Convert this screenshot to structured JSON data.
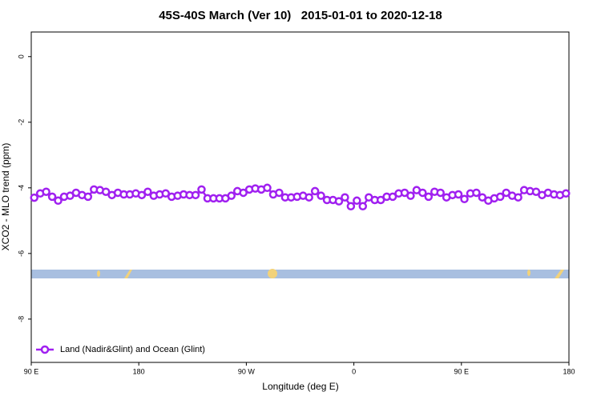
{
  "chart_data": {
    "type": "line",
    "title": "45S-40S March (Ver 10)   2015-01-01 to 2020-12-18",
    "x_label": "Longitude (deg E)",
    "y_label": "XCO2 - MLO trend (ppm)",
    "legend_position": "bottom-left",
    "xlim": [
      90,
      540
    ],
    "xticks": [
      {
        "value": 90,
        "label": "90 E"
      },
      180,
      {
        "value": 270,
        "label": "90 W"
      },
      {
        "value": 360,
        "label": "0"
      },
      {
        "value": 450,
        "label": "90 E"
      },
      {
        "value": 540,
        "label": "180"
      }
    ],
    "ylim": [
      -9.32,
      0.75
    ],
    "yticks": [
      0,
      -2,
      -4,
      -6,
      -8
    ],
    "x": [
      92.5,
      97.5,
      102.5,
      107.5,
      112.5,
      117.5,
      122.5,
      127.5,
      132.5,
      137.5,
      142.5,
      147.5,
      152.5,
      157.5,
      162.5,
      167.5,
      172.5,
      177.5,
      182.5,
      187.5,
      192.5,
      197.5,
      202.5,
      207.5,
      212.5,
      217.5,
      222.5,
      227.5,
      232.5,
      237.5,
      242.5,
      247.5,
      252.5,
      257.5,
      262.5,
      267.5,
      272.5,
      277.5,
      282.5,
      287.5,
      292.5,
      297.5,
      302.5,
      307.5,
      312.5,
      317.5,
      322.5,
      327.5,
      332.5,
      337.5,
      342.5,
      347.5,
      352.5,
      357.5,
      362.5,
      367.5,
      372.5,
      377.5,
      382.5,
      387.5,
      392.5,
      397.5,
      402.5,
      407.5,
      412.5,
      417.5,
      422.5,
      427.5,
      432.5,
      437.5,
      442.5,
      447.5,
      452.5,
      457.5,
      462.5,
      467.5,
      472.5,
      477.5,
      482.5,
      487.5,
      492.5,
      497.5,
      502.5,
      507.5,
      512.5,
      517.5,
      522.5,
      527.5,
      532.5,
      537.5
    ],
    "series": [
      {
        "name": "Land (Nadir&Glint) and Ocean (Glint)",
        "color": "#a020f0",
        "values": [
          -4.3,
          -4.17,
          -4.12,
          -4.27,
          -4.39,
          -4.27,
          -4.24,
          -4.15,
          -4.22,
          -4.27,
          -4.05,
          -4.07,
          -4.12,
          -4.22,
          -4.15,
          -4.2,
          -4.2,
          -4.17,
          -4.22,
          -4.12,
          -4.24,
          -4.2,
          -4.17,
          -4.27,
          -4.24,
          -4.2,
          -4.22,
          -4.22,
          -4.05,
          -4.32,
          -4.32,
          -4.32,
          -4.32,
          -4.24,
          -4.1,
          -4.15,
          -4.05,
          -4.02,
          -4.05,
          -4.0,
          -4.2,
          -4.15,
          -4.29,
          -4.29,
          -4.27,
          -4.24,
          -4.29,
          -4.1,
          -4.24,
          -4.37,
          -4.37,
          -4.41,
          -4.29,
          -4.56,
          -4.39,
          -4.56,
          -4.29,
          -4.37,
          -4.37,
          -4.27,
          -4.27,
          -4.17,
          -4.15,
          -4.24,
          -4.07,
          -4.15,
          -4.27,
          -4.12,
          -4.15,
          -4.29,
          -4.22,
          -4.2,
          -4.34,
          -4.17,
          -4.15,
          -4.29,
          -4.39,
          -4.32,
          -4.27,
          -4.15,
          -4.24,
          -4.29,
          -4.07,
          -4.1,
          -4.12,
          -4.22,
          -4.15,
          -4.2,
          -4.22,
          -4.17
        ]
      }
    ]
  }
}
